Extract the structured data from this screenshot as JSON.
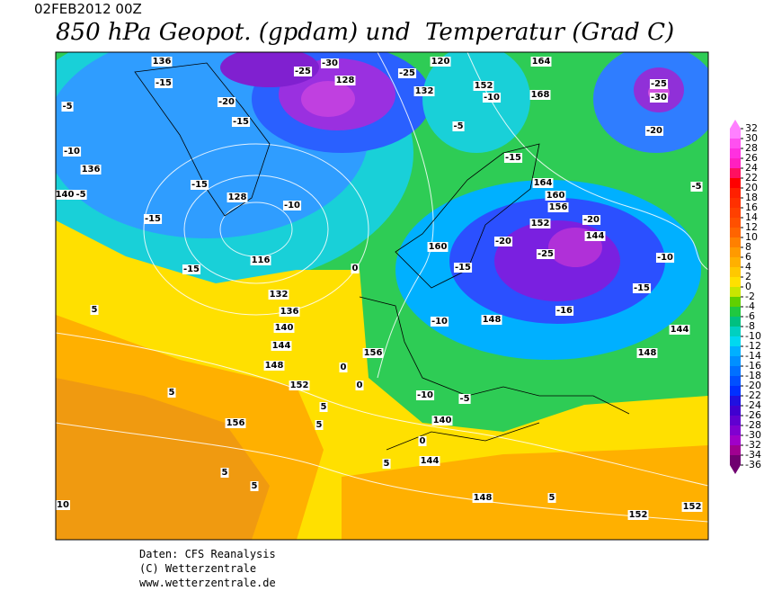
{
  "header": {
    "date": "02FEB2012 00Z",
    "title": "850 hPa Geopot. (gpdam) und  Temperatur (Grad C)"
  },
  "map_labels": [
    136,
    -15,
    -5,
    -15,
    -20,
    -10,
    136,
    140,
    -5,
    -15,
    128,
    -10,
    -15,
    -15,
    116,
    132,
    136,
    140,
    144,
    148,
    152,
    156,
    -25,
    -30,
    128,
    -25,
    132,
    120,
    -5,
    152,
    -10,
    164,
    168,
    -15,
    164,
    160,
    156,
    152,
    -20,
    144,
    -25,
    -20,
    -15,
    160,
    148,
    -10,
    -16,
    -15,
    -10,
    -25,
    -30,
    -20,
    -5,
    144,
    148,
    140,
    144,
    148,
    152,
    152,
    156,
    -10,
    -5,
    5,
    5,
    5,
    5,
    10,
    5,
    5,
    0,
    0,
    0,
    5,
    5,
    0
  ],
  "colorbar": {
    "levels": [
      32,
      30,
      28,
      26,
      24,
      22,
      20,
      18,
      16,
      14,
      12,
      10,
      8,
      6,
      4,
      2,
      0,
      -2,
      -4,
      -6,
      -8,
      -10,
      -12,
      -14,
      -16,
      -18,
      -20,
      -22,
      -24,
      -26,
      -28,
      -30,
      -32,
      -34,
      -36
    ],
    "colors": [
      "#ff80ff",
      "#ff50f0",
      "#ff30e0",
      "#ff20c0",
      "#ff1060",
      "#ff0000",
      "#ff2000",
      "#ff3000",
      "#ff4000",
      "#ff5000",
      "#ff6400",
      "#ff8000",
      "#ff9a00",
      "#ffb000",
      "#ffc800",
      "#ffe000",
      "#c8e600",
      "#60d000",
      "#20c840",
      "#00c080",
      "#00d0c0",
      "#00d8f0",
      "#00b0ff",
      "#0090ff",
      "#0070ff",
      "#0050ff",
      "#0030ff",
      "#2010e0",
      "#4000d0",
      "#6000d0",
      "#8000d0",
      "#a000c8",
      "#a00090",
      "#700070"
    ]
  },
  "footer": {
    "source": "Daten: CFS Reanalysis",
    "copyright": "(C) Wetterzentrale",
    "url": "www.wetterzentrale.de"
  }
}
